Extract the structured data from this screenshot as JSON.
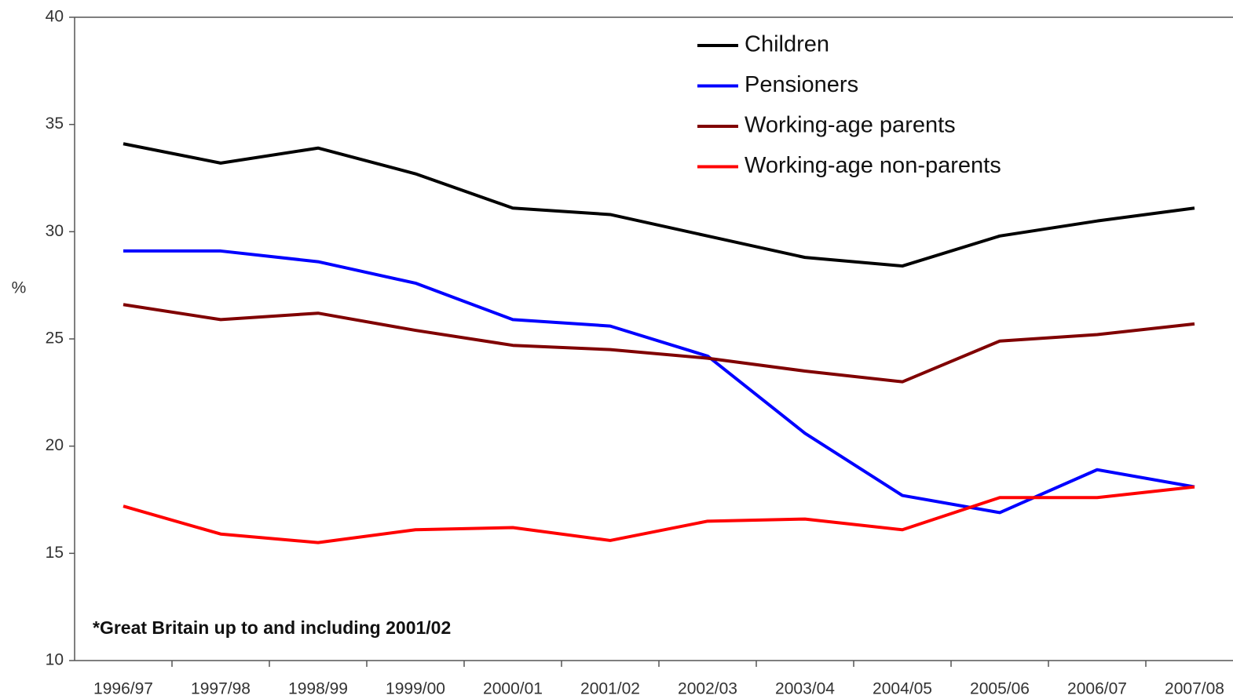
{
  "chart_data": {
    "type": "line",
    "y_label": "%",
    "annotation": "*Great Britain up to and including 2001/02",
    "categories": [
      "1996/97",
      "1997/98",
      "1998/99",
      "1999/00",
      "2000/01",
      "2001/02",
      "2002/03",
      "2003/04",
      "2004/05",
      "2005/06",
      "2006/07",
      "2007/08"
    ],
    "series": [
      {
        "name": "Children",
        "color": "#000000",
        "values": [
          34.1,
          33.2,
          33.9,
          32.7,
          31.1,
          30.8,
          29.8,
          28.8,
          28.4,
          29.8,
          30.5,
          31.1
        ]
      },
      {
        "name": "Pensioners",
        "color": "#0000ff",
        "values": [
          29.1,
          29.1,
          28.6,
          27.6,
          25.9,
          25.6,
          24.2,
          20.6,
          17.7,
          16.9,
          18.9,
          18.1
        ]
      },
      {
        "name": "Working-age parents",
        "color": "#800000",
        "values": [
          26.6,
          25.9,
          26.2,
          25.4,
          24.7,
          24.5,
          24.1,
          23.5,
          23.0,
          24.9,
          25.2,
          25.7
        ]
      },
      {
        "name": "Working-age non-parents",
        "color": "#ff0000",
        "values": [
          17.2,
          15.9,
          15.5,
          16.1,
          16.2,
          15.6,
          16.5,
          16.6,
          16.1,
          17.6,
          17.6,
          18.1
        ]
      }
    ],
    "ylim": [
      10,
      40
    ],
    "yticks": [
      10,
      15,
      20,
      25,
      30,
      35,
      40
    ],
    "grid": false,
    "legend": "top"
  }
}
